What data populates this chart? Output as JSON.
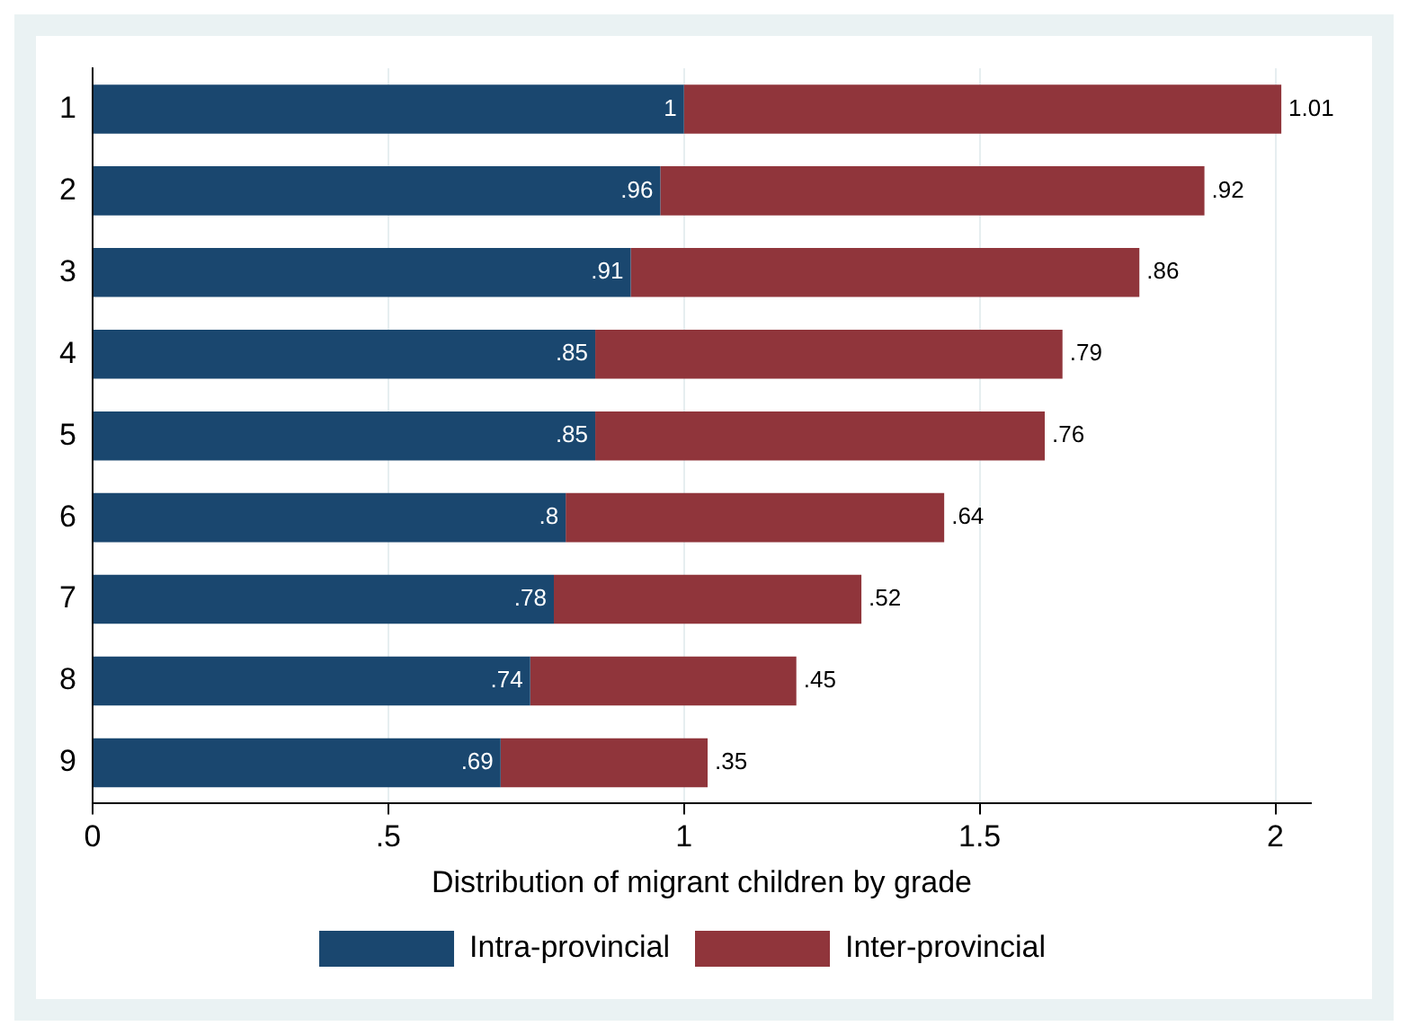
{
  "chart_data": {
    "type": "bar",
    "orientation": "horizontal",
    "stacked": true,
    "xlabel": "Distribution of migrant children by grade",
    "categories": [
      "1",
      "2",
      "3",
      "4",
      "5",
      "6",
      "7",
      "8",
      "9"
    ],
    "series": [
      {
        "name": "Intra-provincial",
        "color": "#1a476f",
        "values": [
          1,
          0.96,
          0.91,
          0.85,
          0.85,
          0.8,
          0.78,
          0.74,
          0.69
        ],
        "value_labels": [
          "1",
          ".96",
          ".91",
          ".85",
          ".85",
          ".8",
          ".78",
          ".74",
          ".69"
        ]
      },
      {
        "name": "Inter-provincial",
        "color": "#90353b",
        "values": [
          1.01,
          0.92,
          0.86,
          0.79,
          0.76,
          0.64,
          0.52,
          0.45,
          0.35
        ],
        "value_labels": [
          "1.01",
          ".92",
          ".86",
          ".79",
          ".76",
          ".64",
          ".52",
          ".45",
          ".35"
        ]
      }
    ],
    "xlim": [
      0,
      2.06
    ],
    "xticks": [
      0,
      {
        "value": 0.5,
        "label": ".5"
      },
      1,
      1.5,
      2
    ],
    "grid": "x",
    "legend": "bottom"
  }
}
